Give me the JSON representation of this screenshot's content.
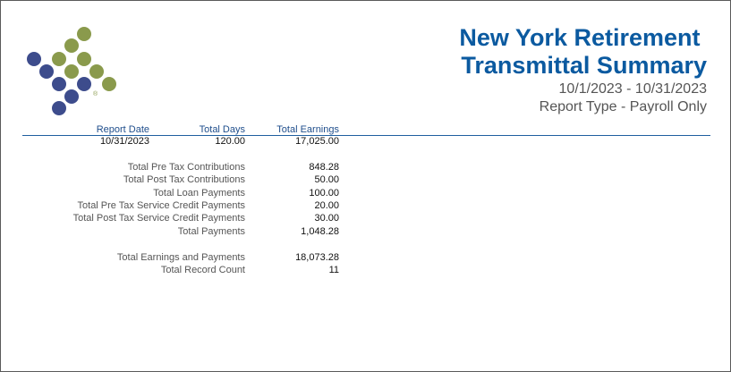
{
  "report": {
    "title": "New York Retirement \nTransmittal Summary",
    "date_range": "10/1/2023 - 10/31/2023",
    "report_type": "Report Type - Payroll Only"
  },
  "logo": {
    "icon": "dotted-diamond-logo",
    "mark": "®",
    "colors": {
      "blue": "#3d4c8c",
      "green": "#8a9a4c"
    }
  },
  "summary": {
    "headers": {
      "report_date": "Report Date",
      "total_days": "Total Days",
      "total_earnings": "Total Earnings"
    },
    "values": {
      "report_date": "10/31/2023",
      "total_days": "120.00",
      "total_earnings": "17,025.00"
    }
  },
  "payments": [
    {
      "label": "Total Pre Tax Contributions",
      "value": "848.28"
    },
    {
      "label": "Total Post Tax Contributions",
      "value": "50.00"
    },
    {
      "label": "Total Loan Payments",
      "value": "100.00"
    },
    {
      "label": "Total Pre Tax Service Credit Payments",
      "value": "20.00"
    },
    {
      "label": "Total Post Tax Service Credit Payments",
      "value": "30.00"
    },
    {
      "label": "Total Payments",
      "value": "1,048.28"
    }
  ],
  "totals": [
    {
      "label": "Total Earnings and Payments",
      "value": "18,073.28"
    },
    {
      "label": "Total Record Count",
      "value": "11"
    }
  ]
}
